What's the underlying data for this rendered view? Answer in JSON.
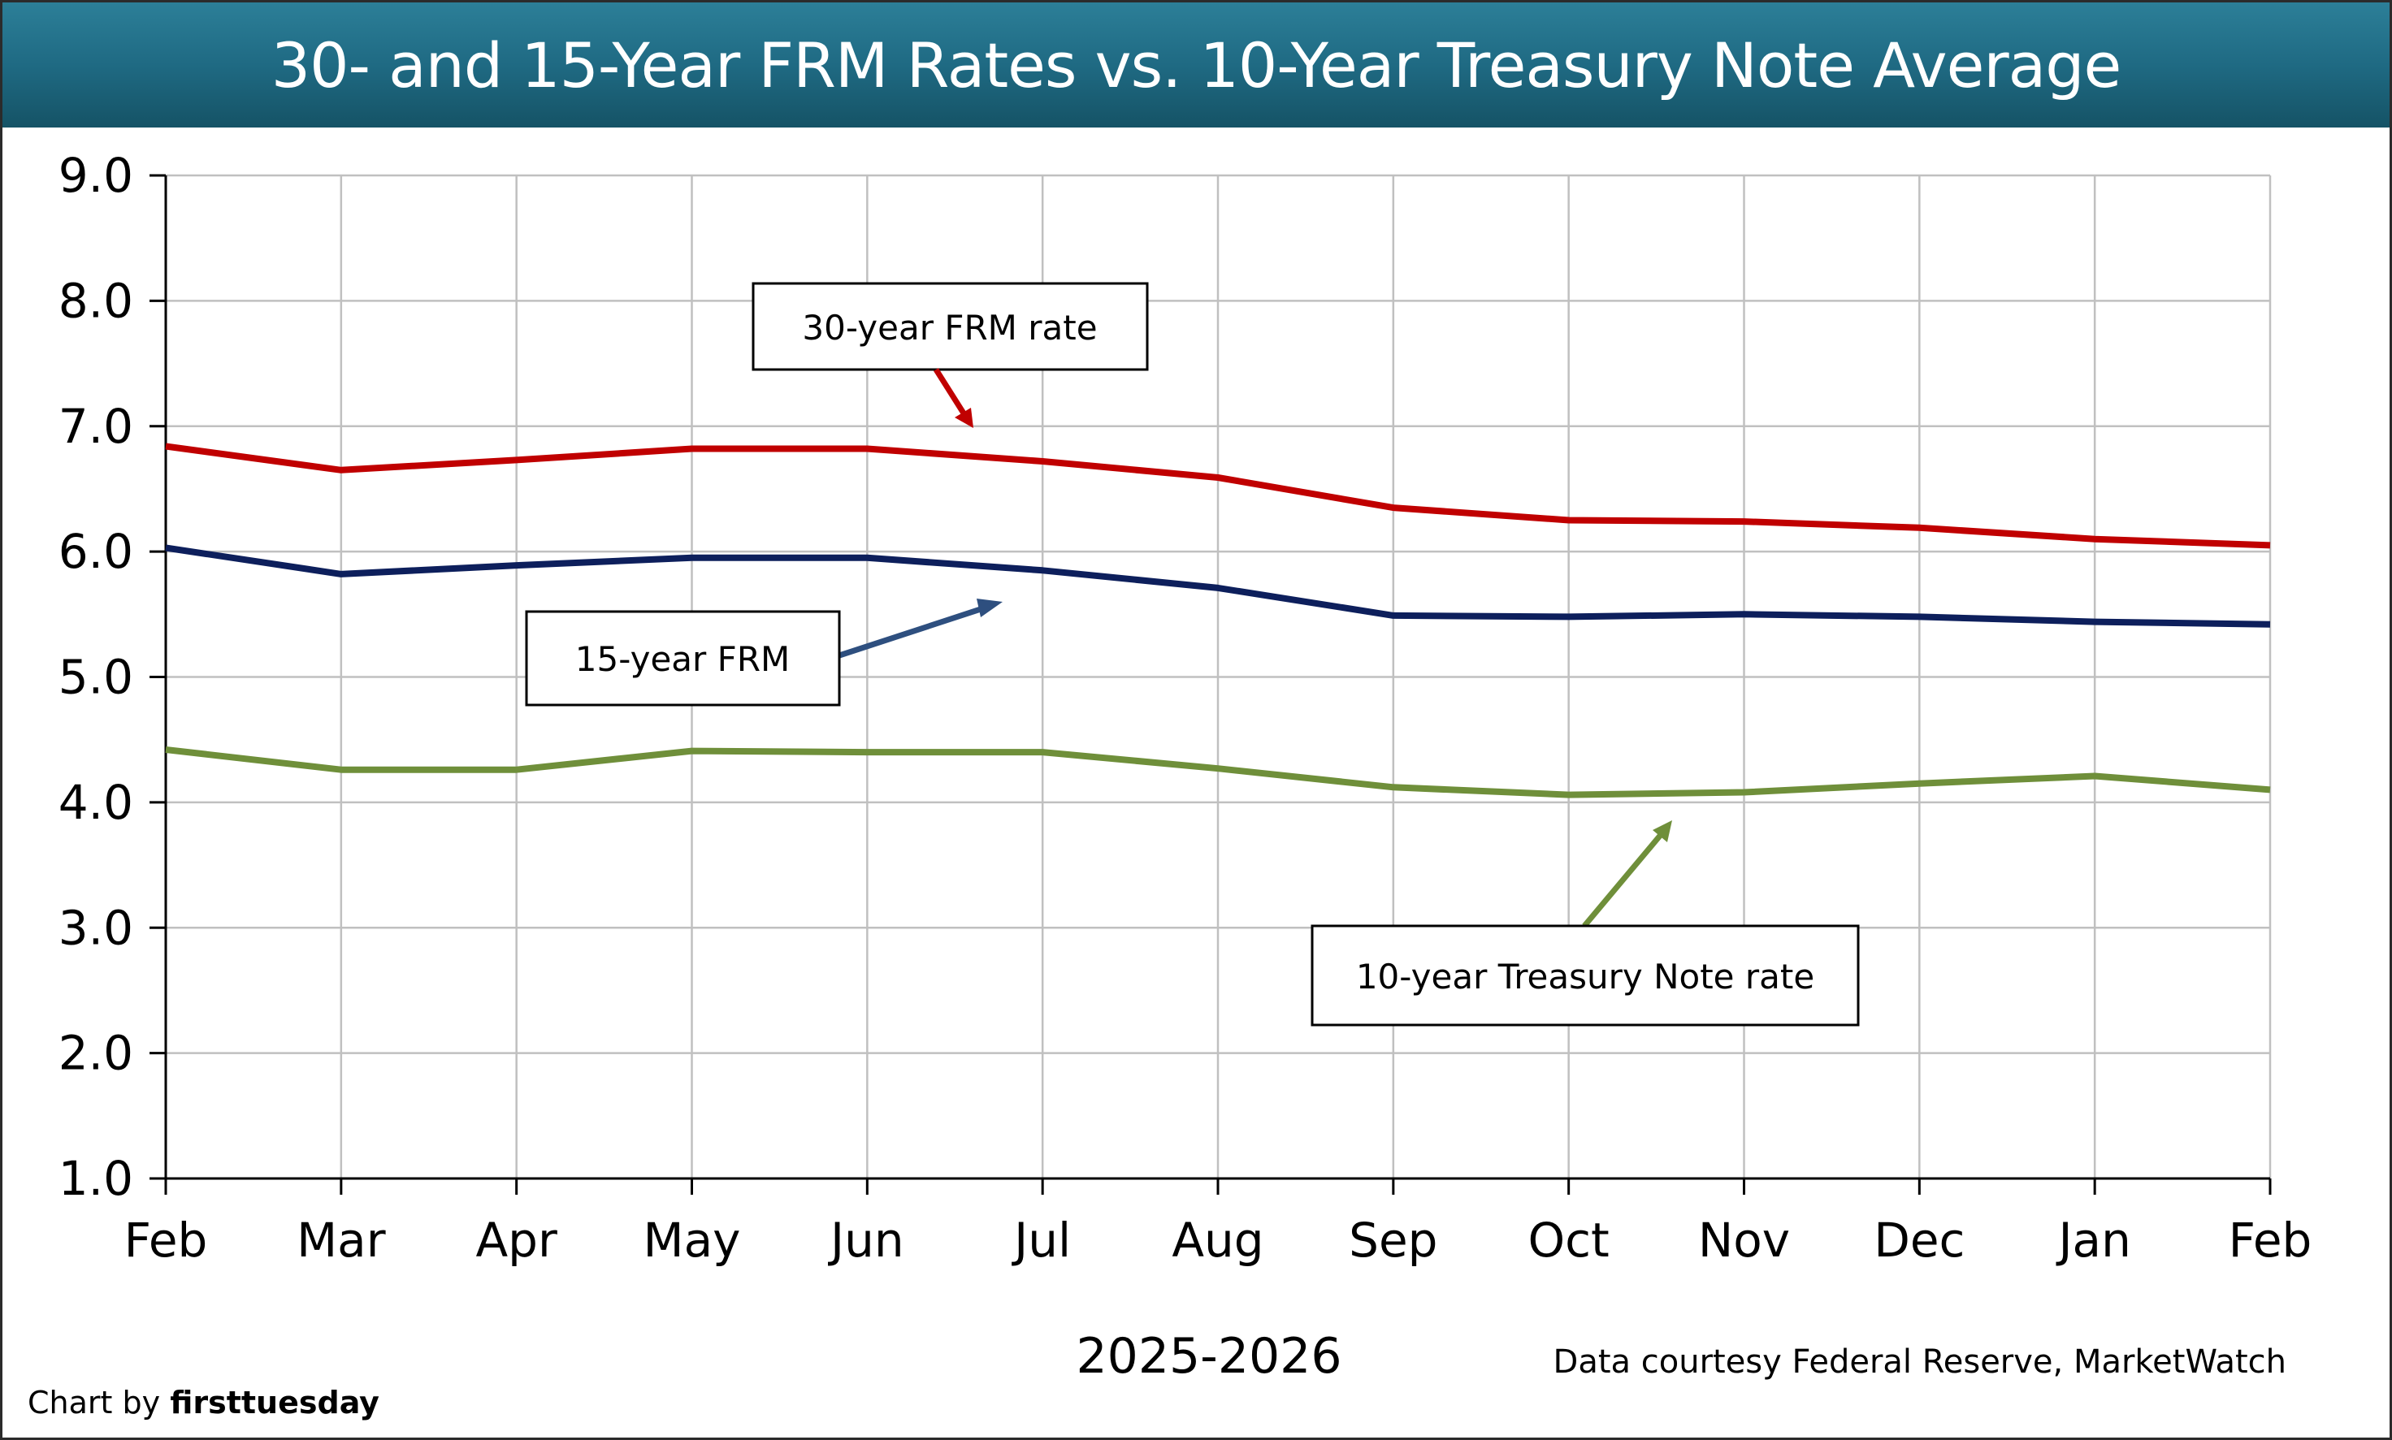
{
  "chart_data": {
    "type": "line",
    "title": "30- and 15-Year FRM Rates vs. 10-Year Treasury Note Average",
    "xlabel": "2025-2026",
    "ylabel": "",
    "ylim": [
      1.0,
      9.0
    ],
    "yticks": [
      "1.0",
      "2.0",
      "3.0",
      "4.0",
      "5.0",
      "6.0",
      "7.0",
      "8.0",
      "9.0"
    ],
    "categories": [
      "Feb",
      "Mar",
      "Apr",
      "May",
      "Jun",
      "Jul",
      "Aug",
      "Sep",
      "Oct",
      "Nov",
      "Dec",
      "Jan",
      "Feb"
    ],
    "grid": true,
    "series": [
      {
        "name": "30-year FRM rate",
        "color": "#c00000",
        "values": [
          6.84,
          6.65,
          6.73,
          6.82,
          6.82,
          6.72,
          6.59,
          6.35,
          6.25,
          6.24,
          6.19,
          6.1,
          6.05
        ]
      },
      {
        "name": "15-year FRM",
        "color": "#0d1f5c",
        "values": [
          6.03,
          5.82,
          5.89,
          5.95,
          5.95,
          5.85,
          5.71,
          5.49,
          5.48,
          5.5,
          5.48,
          5.44,
          5.42
        ]
      },
      {
        "name": "10-year Treasury Note rate",
        "color": "#6f8f3a",
        "values": [
          4.42,
          4.26,
          4.26,
          4.41,
          4.4,
          4.4,
          4.27,
          4.12,
          4.06,
          4.08,
          4.15,
          4.21,
          4.1
        ]
      }
    ],
    "annotations": {
      "frm30": "30-year FRM rate",
      "frm15": "15-year FRM",
      "treasury": "10-year Treasury Note rate"
    },
    "annotation_colors": {
      "frm30_arrow": "#c00000",
      "frm15_arrow": "#2e4f7f",
      "treasury_arrow": "#6f8f3a"
    },
    "source": "Data courtesy Federal Reserve, MarketWatch",
    "credit_prefix": "Chart by ",
    "credit_brand": "firsttuesday"
  },
  "colors": {
    "title_bar": "#1f6a83",
    "grid": "#c0c0c0",
    "axis": "#000000"
  }
}
